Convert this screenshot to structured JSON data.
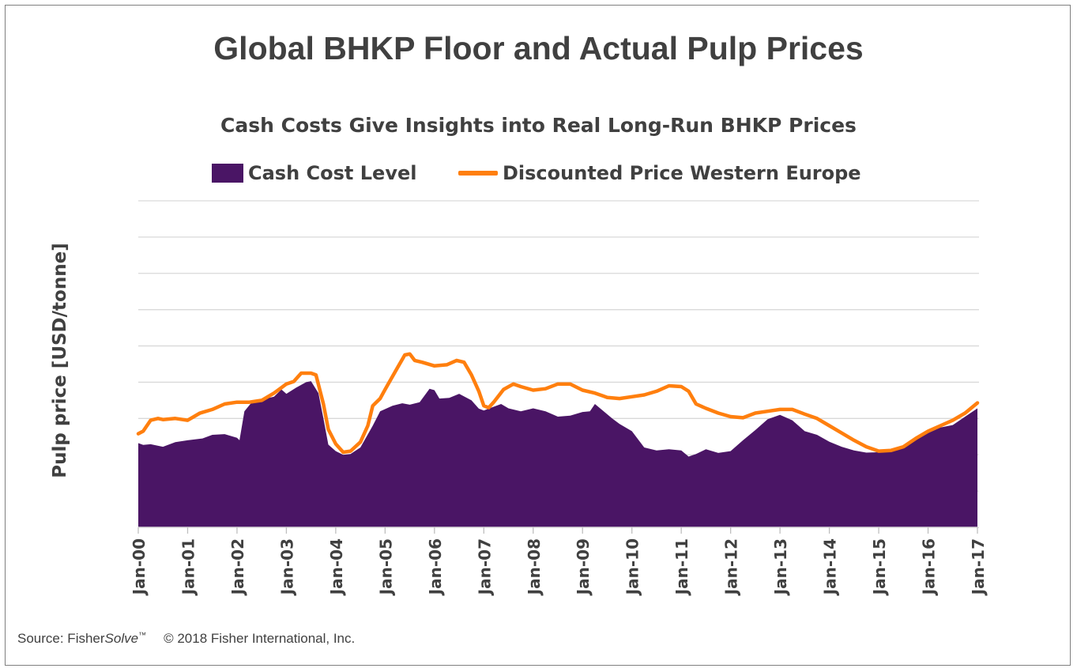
{
  "title": "Global BHKP Floor and Actual Pulp Prices",
  "chart_data": {
    "type": "area+line",
    "title": "Cash Costs Give Insights into Real Long-Run BHKP Prices",
    "ylabel": "Pulp price [USD/tonne]",
    "xlabel": "",
    "ylim": [
      0,
      900
    ],
    "yticks_labeled": false,
    "grid": true,
    "legend_position": "top",
    "categories": [
      "Jan-00",
      "Jan-01",
      "Jan-02",
      "Jan-03",
      "Jan-04",
      "Jan-05",
      "Jan-06",
      "Jan-07",
      "Jan-08",
      "Jan-09",
      "Jan-10",
      "Jan-11",
      "Jan-12",
      "Jan-13",
      "Jan-14",
      "Jan-15",
      "Jan-16",
      "Jan-17"
    ],
    "series": [
      {
        "name": "Cash Cost Level",
        "type": "area",
        "color": "#4a1565",
        "points": [
          [
            0,
            232
          ],
          [
            0.1,
            227
          ],
          [
            0.25,
            229
          ],
          [
            0.5,
            222
          ],
          [
            0.75,
            235
          ],
          [
            1,
            240
          ],
          [
            1.3,
            245
          ],
          [
            1.5,
            255
          ],
          [
            1.75,
            257
          ],
          [
            2,
            247
          ],
          [
            2.05,
            240
          ],
          [
            2.15,
            320
          ],
          [
            2.3,
            345
          ],
          [
            2.5,
            352
          ],
          [
            2.75,
            360
          ],
          [
            2.9,
            380
          ],
          [
            3,
            368
          ],
          [
            3.2,
            385
          ],
          [
            3.4,
            400
          ],
          [
            3.5,
            403
          ],
          [
            3.65,
            370
          ],
          [
            3.75,
            300
          ],
          [
            3.85,
            228
          ],
          [
            4,
            210
          ],
          [
            4.15,
            200
          ],
          [
            4.3,
            202
          ],
          [
            4.5,
            220
          ],
          [
            4.75,
            280
          ],
          [
            4.9,
            320
          ],
          [
            5.15,
            335
          ],
          [
            5.35,
            342
          ],
          [
            5.5,
            338
          ],
          [
            5.7,
            345
          ],
          [
            5.9,
            382
          ],
          [
            6,
            378
          ],
          [
            6.1,
            355
          ],
          [
            6.3,
            357
          ],
          [
            6.5,
            368
          ],
          [
            6.75,
            350
          ],
          [
            6.9,
            327
          ],
          [
            7,
            322
          ],
          [
            7.15,
            330
          ],
          [
            7.35,
            340
          ],
          [
            7.5,
            328
          ],
          [
            7.75,
            320
          ],
          [
            8,
            328
          ],
          [
            8.25,
            320
          ],
          [
            8.5,
            305
          ],
          [
            8.75,
            308
          ],
          [
            9,
            318
          ],
          [
            9.15,
            320
          ],
          [
            9.25,
            340
          ],
          [
            9.4,
            323
          ],
          [
            9.6,
            300
          ],
          [
            9.75,
            285
          ],
          [
            10,
            265
          ],
          [
            10.25,
            220
          ],
          [
            10.5,
            212
          ],
          [
            10.75,
            215
          ],
          [
            11,
            212
          ],
          [
            11.15,
            195
          ],
          [
            11.3,
            202
          ],
          [
            11.5,
            215
          ],
          [
            11.75,
            205
          ],
          [
            12,
            210
          ],
          [
            12.25,
            240
          ],
          [
            12.5,
            268
          ],
          [
            12.75,
            298
          ],
          [
            13,
            310
          ],
          [
            13.25,
            295
          ],
          [
            13.5,
            265
          ],
          [
            13.75,
            255
          ],
          [
            14,
            236
          ],
          [
            14.25,
            222
          ],
          [
            14.5,
            212
          ],
          [
            14.75,
            206
          ],
          [
            15,
            207
          ],
          [
            15.25,
            210
          ],
          [
            15.5,
            220
          ],
          [
            15.75,
            240
          ],
          [
            16,
            260
          ],
          [
            16.25,
            275
          ],
          [
            16.5,
            282
          ],
          [
            16.75,
            305
          ],
          [
            17,
            328
          ]
        ]
      },
      {
        "name": "Discounted Price Western Europe",
        "type": "line",
        "color": "#ff7f0e",
        "points": [
          [
            0,
            258
          ],
          [
            0.1,
            265
          ],
          [
            0.25,
            295
          ],
          [
            0.4,
            300
          ],
          [
            0.5,
            297
          ],
          [
            0.75,
            300
          ],
          [
            1,
            295
          ],
          [
            1.25,
            315
          ],
          [
            1.5,
            325
          ],
          [
            1.75,
            340
          ],
          [
            2,
            345
          ],
          [
            2.25,
            345
          ],
          [
            2.5,
            350
          ],
          [
            2.75,
            370
          ],
          [
            2.9,
            385
          ],
          [
            3,
            395
          ],
          [
            3.15,
            402
          ],
          [
            3.3,
            425
          ],
          [
            3.5,
            425
          ],
          [
            3.6,
            420
          ],
          [
            3.75,
            340
          ],
          [
            3.85,
            270
          ],
          [
            4,
            230
          ],
          [
            4.15,
            207
          ],
          [
            4.3,
            210
          ],
          [
            4.5,
            235
          ],
          [
            4.65,
            280
          ],
          [
            4.75,
            335
          ],
          [
            4.9,
            355
          ],
          [
            5,
            380
          ],
          [
            5.25,
            440
          ],
          [
            5.4,
            475
          ],
          [
            5.5,
            478
          ],
          [
            5.6,
            460
          ],
          [
            5.75,
            455
          ],
          [
            6,
            445
          ],
          [
            6.25,
            448
          ],
          [
            6.45,
            460
          ],
          [
            6.6,
            455
          ],
          [
            6.75,
            420
          ],
          [
            6.9,
            375
          ],
          [
            7,
            335
          ],
          [
            7.1,
            330
          ],
          [
            7.2,
            345
          ],
          [
            7.4,
            380
          ],
          [
            7.6,
            395
          ],
          [
            7.75,
            388
          ],
          [
            8,
            378
          ],
          [
            8.25,
            382
          ],
          [
            8.5,
            395
          ],
          [
            8.75,
            395
          ],
          [
            9,
            378
          ],
          [
            9.25,
            370
          ],
          [
            9.5,
            358
          ],
          [
            9.75,
            355
          ],
          [
            10,
            360
          ],
          [
            10.25,
            365
          ],
          [
            10.5,
            375
          ],
          [
            10.75,
            390
          ],
          [
            11,
            388
          ],
          [
            11.15,
            375
          ],
          [
            11.3,
            340
          ],
          [
            11.5,
            328
          ],
          [
            11.75,
            315
          ],
          [
            12,
            305
          ],
          [
            12.25,
            302
          ],
          [
            12.5,
            315
          ],
          [
            12.75,
            320
          ],
          [
            13,
            325
          ],
          [
            13.25,
            325
          ],
          [
            13.5,
            312
          ],
          [
            13.75,
            300
          ],
          [
            14,
            280
          ],
          [
            14.25,
            260
          ],
          [
            14.5,
            240
          ],
          [
            14.75,
            222
          ],
          [
            15,
            210
          ],
          [
            15.25,
            212
          ],
          [
            15.5,
            222
          ],
          [
            15.75,
            245
          ],
          [
            16,
            265
          ],
          [
            16.25,
            280
          ],
          [
            16.5,
            295
          ],
          [
            16.75,
            315
          ],
          [
            17,
            343
          ]
        ]
      }
    ]
  },
  "legend": {
    "cash_label": "Cash Cost Level",
    "price_label": "Discounted Price Western Europe"
  },
  "source": {
    "prefix": "Source: Fisher",
    "italic": "Solve",
    "tm": "™",
    "copyright": "© 2018 Fisher International, Inc."
  }
}
